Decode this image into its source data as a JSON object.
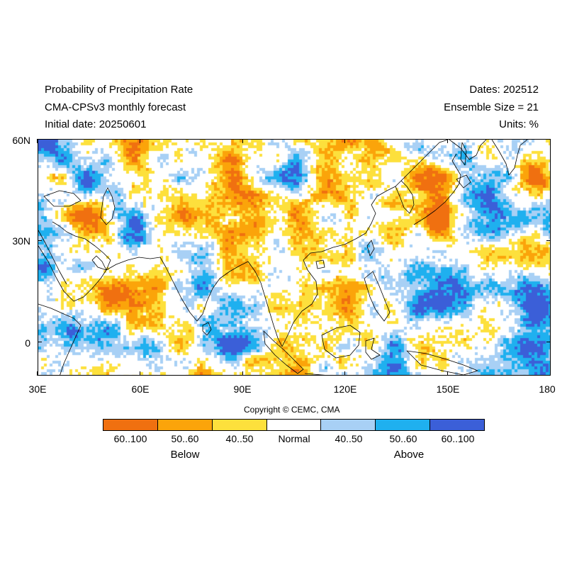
{
  "header": {
    "title_line1": "Probability of Precipitation Rate",
    "title_line2": "CMA-CPSv3 monthly forecast",
    "title_line3": "Initial date: 20250601",
    "right_line1": "Dates: 202512",
    "right_line2": "Ensemble Size = 21",
    "right_line3": "Units: %"
  },
  "map": {
    "lon_range": [
      30,
      180
    ],
    "lat_range": [
      -10,
      60
    ],
    "x_ticks": [
      "30E",
      "60E",
      "90E",
      "120E",
      "150E",
      "180"
    ],
    "x_tick_values": [
      30,
      60,
      90,
      120,
      150,
      180
    ],
    "y_ticks": [
      "60N",
      "30N",
      "0"
    ],
    "y_tick_values": [
      60,
      30,
      0
    ]
  },
  "legend": {
    "copyright": "Copyright © CEMC, CMA",
    "swatches": [
      {
        "color": "#f07010",
        "label": "60..100"
      },
      {
        "color": "#fba40a",
        "label": "50..60"
      },
      {
        "color": "#fde03c",
        "label": "40..50"
      },
      {
        "color": "#ffffff",
        "label": "Normal"
      },
      {
        "color": "#a8d0f5",
        "label": "40..50"
      },
      {
        "color": "#1fb0ef",
        "label": "50..60"
      },
      {
        "color": "#3b5fd8",
        "label": "60..100"
      }
    ],
    "below_label": "Below",
    "above_label": "Above"
  }
}
